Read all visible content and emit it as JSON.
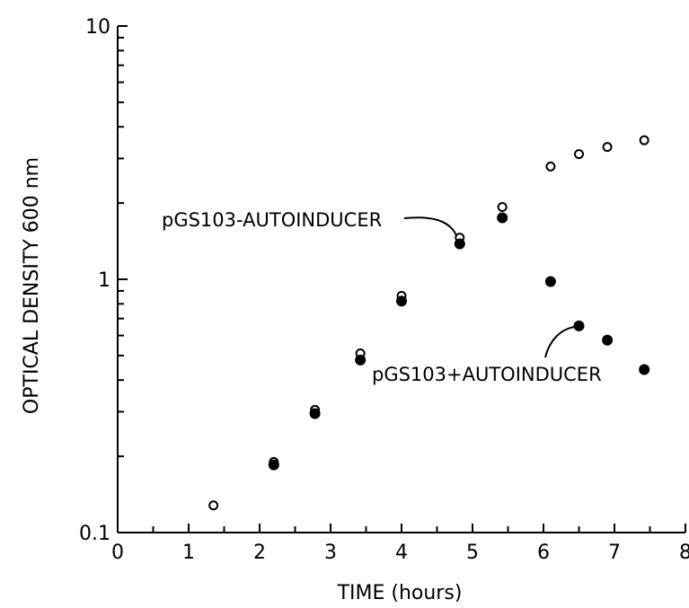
{
  "chart_data": {
    "type": "scatter",
    "xlabel": "TIME (hours)",
    "ylabel": "OPTICAL DENSITY 600 nm",
    "xlim": [
      0,
      8
    ],
    "ylim": [
      0.1,
      10
    ],
    "y_scale": "log",
    "x_ticks": [
      0,
      1,
      2,
      3,
      4,
      5,
      6,
      7,
      8
    ],
    "x_tick_labels": [
      "0",
      "1",
      "2",
      "3",
      "4",
      "5",
      "6",
      "7",
      "8"
    ],
    "y_ticks": [
      0.1,
      1,
      10
    ],
    "y_tick_labels": [
      "0.1",
      "1",
      "10"
    ],
    "grid": false,
    "series": [
      {
        "name": "pGS103-AUTOINDUCER",
        "marker": "open-circle",
        "color": "#000000",
        "x": [
          1.35,
          2.2,
          2.78,
          3.42,
          4.0,
          4.82,
          5.42,
          6.1,
          6.5,
          6.9,
          7.42
        ],
        "y": [
          0.128,
          0.19,
          0.305,
          0.51,
          0.86,
          1.46,
          1.93,
          2.79,
          3.12,
          3.33,
          3.54
        ]
      },
      {
        "name": "pGS103+AUTOINDUCER",
        "marker": "filled-circle",
        "color": "#000000",
        "x": [
          2.2,
          2.78,
          3.42,
          4.0,
          4.82,
          5.42,
          6.1,
          6.5,
          6.9,
          7.42
        ],
        "y": [
          0.185,
          0.295,
          0.48,
          0.82,
          1.38,
          1.75,
          0.98,
          0.655,
          0.575,
          0.44
        ]
      }
    ],
    "annotations": [
      {
        "text": "pGS103-AUTOINDUCER",
        "points_to": "open circle at t=4.8 h"
      },
      {
        "text": "pGS103+AUTOINDUCER",
        "points_to": "filled circle at t=6.5 h"
      }
    ]
  }
}
